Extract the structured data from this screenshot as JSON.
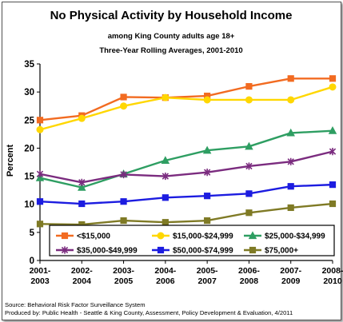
{
  "chart_data": {
    "type": "line",
    "title": "No Physical Activity by Household Income",
    "subtitle_1": "among King County adults age 18+",
    "subtitle_2": "Three-Year Rolling Averages, 2001-2010",
    "ylabel": "Percent",
    "xlabel": "",
    "ylim": [
      0,
      35
    ],
    "yticks": [
      0,
      5,
      10,
      15,
      20,
      25,
      30,
      35
    ],
    "grid": false,
    "legend_position": "bottom-center",
    "categories": [
      [
        "2001-",
        "2003"
      ],
      [
        "2002-",
        "2004"
      ],
      [
        "2003-",
        "2005"
      ],
      [
        "2004-",
        "2006"
      ],
      [
        "2005-",
        "2007"
      ],
      [
        "2006-",
        "2008"
      ],
      [
        "2007-",
        "2009"
      ],
      [
        "2008-",
        "2010"
      ]
    ],
    "series": [
      {
        "name": "<$15,000",
        "color": "#F26B21",
        "marker": "square",
        "values": [
          25.0,
          25.8,
          29.1,
          29.0,
          29.3,
          31.0,
          32.4,
          32.4
        ]
      },
      {
        "name": "$15,000-$24,999",
        "color": "#FFD700",
        "marker": "circle",
        "values": [
          23.3,
          25.3,
          27.5,
          29.0,
          28.6,
          28.6,
          28.6,
          30.9
        ]
      },
      {
        "name": "$25,000-$34,999",
        "color": "#2E9E62",
        "marker": "triangle",
        "values": [
          14.7,
          13.0,
          15.4,
          17.8,
          19.6,
          20.3,
          22.7,
          23.1
        ]
      },
      {
        "name": "$35,000-$49,999",
        "color": "#7B2C7F",
        "marker": "star",
        "values": [
          15.4,
          13.9,
          15.3,
          15.0,
          15.7,
          16.8,
          17.6,
          19.4
        ]
      },
      {
        "name": "$50,000-$74,999",
        "color": "#1C1CE0",
        "marker": "square",
        "values": [
          10.5,
          10.1,
          10.5,
          11.2,
          11.5,
          11.9,
          13.2,
          13.5
        ]
      },
      {
        "name": "$75,000+",
        "color": "#7F7A25",
        "marker": "square",
        "values": [
          6.5,
          6.4,
          7.1,
          6.8,
          7.1,
          8.5,
          9.4,
          10.1
        ]
      }
    ]
  },
  "footer": {
    "source": "Source: Behavioral Risk Factor Surveillance System",
    "produced_by": "Produced by: Public Health - Seattle & King County, Assessment, Policy Development & Evaluation, 4/2011"
  }
}
